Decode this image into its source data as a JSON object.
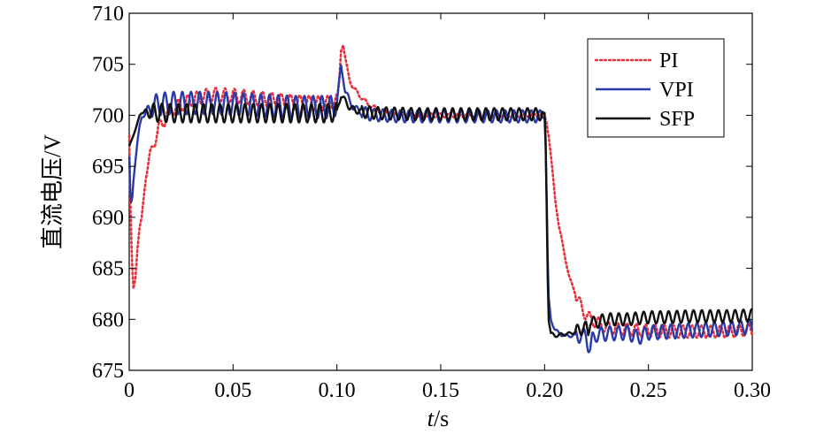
{
  "chart_data": {
    "type": "line",
    "title": "",
    "xlabel_italic": "t",
    "xlabel_rest": "/s",
    "ylabel": "直流电压/V",
    "xlim": [
      0,
      0.3
    ],
    "ylim": [
      675,
      710
    ],
    "xticks": [
      0,
      0.05,
      0.1,
      0.15,
      0.2,
      0.25,
      0.3
    ],
    "xtick_labels": [
      "0",
      "0.05",
      "0.10",
      "0.15",
      "0.20",
      "0.25",
      "0.30"
    ],
    "yticks": [
      675,
      680,
      685,
      690,
      695,
      700,
      705,
      710
    ],
    "ytick_labels": [
      "675",
      "680",
      "685",
      "690",
      "695",
      "700",
      "705",
      "710"
    ],
    "grid": false,
    "legend_position": "top-right",
    "series": [
      {
        "name": "PI",
        "color": "#e8303a",
        "style": "dotted",
        "x": [
          0,
          0.0005,
          0.001,
          0.0015,
          0.002,
          0.003,
          0.004,
          0.005,
          0.006,
          0.007,
          0.008,
          0.009,
          0.01,
          0.012,
          0.014,
          0.016,
          0.018,
          0.02,
          0.025,
          0.03,
          0.035,
          0.04,
          0.05,
          0.06,
          0.07,
          0.08,
          0.09,
          0.095,
          0.1,
          0.101,
          0.102,
          0.103,
          0.104,
          0.105,
          0.106,
          0.108,
          0.11,
          0.112,
          0.115,
          0.12,
          0.125,
          0.13,
          0.14,
          0.15,
          0.16,
          0.17,
          0.18,
          0.19,
          0.198,
          0.2,
          0.201,
          0.202,
          0.203,
          0.204,
          0.205,
          0.206,
          0.207,
          0.208,
          0.209,
          0.21,
          0.212,
          0.214,
          0.216,
          0.218,
          0.22,
          0.222,
          0.225,
          0.23,
          0.24,
          0.25,
          0.26,
          0.27,
          0.28,
          0.29,
          0.3
        ],
        "values": [
          698,
          692,
          688,
          685,
          683,
          684,
          687,
          689,
          690,
          692,
          694,
          695,
          696,
          697.5,
          698.5,
          699.3,
          700,
          700.6,
          701,
          701.5,
          701.8,
          702,
          701.9,
          701.7,
          701.5,
          701.3,
          701.2,
          701.2,
          701.4,
          703,
          706.5,
          707,
          705.5,
          704.5,
          703.6,
          702.6,
          702.2,
          701.7,
          701.1,
          700.5,
          700.3,
          700.1,
          700,
          700,
          700,
          700,
          700,
          700,
          700,
          700,
          699.3,
          698,
          696,
          694,
          692,
          690.5,
          689,
          688,
          687,
          686,
          684,
          683,
          682,
          681,
          680.5,
          680,
          679.7,
          679.2,
          679,
          678.9,
          678.8,
          678.8,
          678.8,
          678.8,
          679
        ]
      },
      {
        "name": "VPI",
        "color": "#2a3aa8",
        "style": "solid",
        "x": [
          0,
          0.0005,
          0.001,
          0.0015,
          0.002,
          0.003,
          0.004,
          0.005,
          0.006,
          0.008,
          0.01,
          0.012,
          0.015,
          0.02,
          0.03,
          0.04,
          0.05,
          0.06,
          0.07,
          0.08,
          0.09,
          0.098,
          0.1,
          0.101,
          0.102,
          0.103,
          0.104,
          0.106,
          0.108,
          0.11,
          0.115,
          0.12,
          0.13,
          0.14,
          0.15,
          0.16,
          0.17,
          0.18,
          0.19,
          0.198,
          0.2,
          0.2005,
          0.201,
          0.2015,
          0.202,
          0.203,
          0.205,
          0.207,
          0.21,
          0.215,
          0.22,
          0.221,
          0.222,
          0.223,
          0.225,
          0.23,
          0.24,
          0.245,
          0.25,
          0.26,
          0.27,
          0.28,
          0.29,
          0.3
        ],
        "values": [
          696,
          692.5,
          691.5,
          692,
          693.5,
          695.5,
          697.5,
          699,
          699.8,
          700.2,
          700.6,
          700.9,
          701.1,
          701.2,
          701.2,
          701.2,
          701.1,
          701,
          700.9,
          700.8,
          700.8,
          700.8,
          701.2,
          703,
          704.8,
          703.8,
          702.4,
          701.4,
          700.8,
          700.5,
          700.1,
          700,
          699.9,
          699.9,
          699.9,
          699.9,
          699.9,
          699.9,
          699.9,
          699.9,
          699.9,
          697,
          692,
          686,
          682,
          680,
          679,
          678.6,
          678.4,
          678.4,
          678.4,
          677.5,
          677,
          678,
          678.5,
          678.6,
          678.7,
          678.2,
          678.7,
          678.8,
          678.9,
          679,
          679.1,
          679.3
        ]
      },
      {
        "name": "SFP",
        "color": "#111111",
        "style": "solid",
        "x": [
          0,
          0.001,
          0.002,
          0.003,
          0.004,
          0.005,
          0.006,
          0.008,
          0.01,
          0.02,
          0.04,
          0.06,
          0.08,
          0.095,
          0.1,
          0.101,
          0.102,
          0.104,
          0.106,
          0.11,
          0.12,
          0.14,
          0.16,
          0.18,
          0.199,
          0.2,
          0.2005,
          0.201,
          0.2015,
          0.202,
          0.203,
          0.205,
          0.208,
          0.212,
          0.215,
          0.218,
          0.22,
          0.221,
          0.222,
          0.224,
          0.226,
          0.23,
          0.24,
          0.25,
          0.26,
          0.27,
          0.28,
          0.29,
          0.3
        ],
        "values": [
          697,
          697.5,
          698,
          698.6,
          699.3,
          700,
          700.2,
          700.3,
          700.3,
          700.2,
          700.2,
          700.2,
          700.2,
          700.2,
          700.3,
          701.2,
          702,
          701.4,
          700.8,
          700.4,
          700.2,
          700.1,
          700.1,
          700.1,
          700.1,
          700.1,
          697.5,
          691,
          684,
          680,
          678.6,
          678.4,
          678.5,
          678.6,
          678.8,
          679.1,
          679.2,
          678.7,
          680,
          679.6,
          679.8,
          680,
          680,
          680.2,
          680.2,
          680.3,
          680.3,
          680.3,
          680.4
        ]
      }
    ],
    "oscillations": [
      {
        "name": "PI",
        "period": 0.0045,
        "amp_phase_1": 0.7,
        "amp_phase_2": 0.2,
        "amp_phase_3": 0.6
      },
      {
        "name": "VPI",
        "period": 0.0042,
        "amp_phase_1": 1.1,
        "amp_phase_2": 0.6,
        "amp_phase_3": 0.7
      },
      {
        "name": "SFP",
        "period": 0.004,
        "amp_phase_1": 0.9,
        "amp_phase_2": 0.6,
        "amp_phase_3": 0.6
      }
    ]
  }
}
